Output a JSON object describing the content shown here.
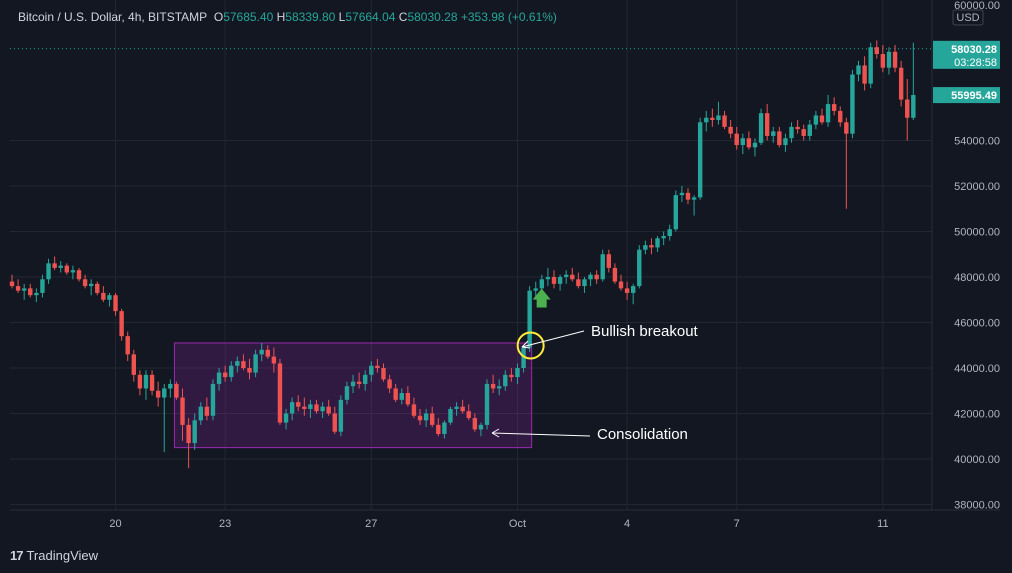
{
  "header": {
    "symbol": "Bitcoin / U.S. Dollar, 4h, BITSTAMP",
    "open_label": "O",
    "open": "57685.40",
    "high_label": "H",
    "high": "58339.80",
    "low_label": "L",
    "low": "57664.04",
    "close_label": "C",
    "close": "58030.28",
    "change": "+353.98 (+0.61%)"
  },
  "footer": {
    "brand": "TradingView"
  },
  "annotations": {
    "breakout": "Bullish breakout",
    "consolidation": "Consolidation"
  },
  "chart_data": {
    "type": "candlestick",
    "y_unit": "USD",
    "ylim": [
      37500,
      60000
    ],
    "y_ticks": [
      38000,
      40000,
      42000,
      44000,
      46000,
      48000,
      50000,
      52000,
      54000,
      60000
    ],
    "y_tick_labels": [
      "38000.00",
      "40000.00",
      "42000.00",
      "44000.00",
      "46000.00",
      "48000.00",
      "50000.00",
      "52000.00",
      "54000.00",
      "60000.00"
    ],
    "x_ticks": [
      {
        "label": "20",
        "index": 17
      },
      {
        "label": "23",
        "index": 35
      },
      {
        "label": "27",
        "index": 59
      },
      {
        "label": "Oct",
        "index": 83
      },
      {
        "label": "4",
        "index": 101
      },
      {
        "label": "7",
        "index": 119
      },
      {
        "label": "11",
        "index": 143
      }
    ],
    "price_tags": [
      {
        "value": 58030.28,
        "label": "58030.28",
        "sub": "03:28:58",
        "color": "#26a69a"
      },
      {
        "value": 55995.49,
        "label": "55995.49",
        "sub": "",
        "color": "#26a69a"
      }
    ],
    "consolidation_zone": {
      "start_index": 27,
      "end_index": 85,
      "low": 40500,
      "high": 45100
    },
    "breakout_point": {
      "index": 85,
      "price": 44900
    },
    "candles": [
      [
        47800,
        48100,
        47500,
        47600
      ],
      [
        47600,
        47900,
        47300,
        47400
      ],
      [
        47400,
        47700,
        47000,
        47500
      ],
      [
        47500,
        47700,
        47100,
        47200
      ],
      [
        47200,
        47500,
        46900,
        47300
      ],
      [
        47300,
        48100,
        47100,
        47900
      ],
      [
        47900,
        48800,
        47700,
        48600
      ],
      [
        48600,
        48900,
        48300,
        48400
      ],
      [
        48400,
        48700,
        48200,
        48500
      ],
      [
        48500,
        48600,
        48100,
        48200
      ],
      [
        48200,
        48500,
        47900,
        48300
      ],
      [
        48300,
        48400,
        47800,
        47900
      ],
      [
        47900,
        48100,
        47500,
        47600
      ],
      [
        47600,
        47900,
        47200,
        47700
      ],
      [
        47700,
        47800,
        47200,
        47300
      ],
      [
        47300,
        47600,
        46900,
        47000
      ],
      [
        47000,
        47300,
        46700,
        47200
      ],
      [
        47200,
        47300,
        46300,
        46500
      ],
      [
        46500,
        46600,
        45200,
        45400
      ],
      [
        45400,
        45600,
        44300,
        44600
      ],
      [
        44600,
        44800,
        43400,
        43700
      ],
      [
        43700,
        43900,
        42800,
        43100
      ],
      [
        43100,
        43900,
        42600,
        43700
      ],
      [
        43700,
        43900,
        42800,
        43000
      ],
      [
        43000,
        43400,
        42300,
        42700
      ],
      [
        42700,
        43300,
        40300,
        43100
      ],
      [
        43100,
        43500,
        42700,
        43300
      ],
      [
        43300,
        43400,
        42600,
        42700
      ],
      [
        42700,
        43100,
        40800,
        41500
      ],
      [
        41500,
        41800,
        39600,
        40700
      ],
      [
        40700,
        42000,
        40400,
        41700
      ],
      [
        41700,
        42500,
        41500,
        42300
      ],
      [
        42300,
        42700,
        41700,
        41900
      ],
      [
        41900,
        43500,
        41700,
        43300
      ],
      [
        43300,
        44000,
        43000,
        43800
      ],
      [
        43800,
        44100,
        43400,
        43600
      ],
      [
        43600,
        44300,
        43400,
        44100
      ],
      [
        44100,
        44500,
        43800,
        44300
      ],
      [
        44300,
        44600,
        43900,
        44000
      ],
      [
        44000,
        44400,
        43500,
        43800
      ],
      [
        43800,
        44800,
        43600,
        44600
      ],
      [
        44600,
        45100,
        44300,
        44800
      ],
      [
        44800,
        45000,
        44400,
        44500
      ],
      [
        44500,
        44900,
        43800,
        44200
      ],
      [
        44200,
        44400,
        41500,
        41600
      ],
      [
        41600,
        42200,
        41300,
        42000
      ],
      [
        42000,
        42700,
        41700,
        42500
      ],
      [
        42500,
        42800,
        42100,
        42300
      ],
      [
        42300,
        42700,
        41900,
        42200
      ],
      [
        42200,
        42600,
        41800,
        42400
      ],
      [
        42400,
        42600,
        42000,
        42100
      ],
      [
        42100,
        42500,
        41800,
        42300
      ],
      [
        42300,
        42600,
        41900,
        42000
      ],
      [
        42000,
        42300,
        41100,
        41200
      ],
      [
        41200,
        42800,
        41000,
        42600
      ],
      [
        42600,
        43400,
        42400,
        43200
      ],
      [
        43200,
        43700,
        42900,
        43400
      ],
      [
        43400,
        43800,
        43100,
        43300
      ],
      [
        43300,
        43900,
        43000,
        43700
      ],
      [
        43700,
        44300,
        43400,
        44100
      ],
      [
        44100,
        44400,
        43800,
        44000
      ],
      [
        44000,
        44200,
        43400,
        43500
      ],
      [
        43500,
        43700,
        42900,
        43100
      ],
      [
        43100,
        43300,
        42500,
        42600
      ],
      [
        42600,
        43100,
        42400,
        42900
      ],
      [
        42900,
        43200,
        42300,
        42400
      ],
      [
        42400,
        42700,
        41800,
        41900
      ],
      [
        41900,
        42200,
        41500,
        41700
      ],
      [
        41700,
        42200,
        41400,
        42000
      ],
      [
        42000,
        42300,
        41400,
        41500
      ],
      [
        41500,
        41800,
        41000,
        41100
      ],
      [
        41100,
        41700,
        40900,
        41600
      ],
      [
        41600,
        42300,
        41500,
        42200
      ],
      [
        42200,
        42500,
        41900,
        42300
      ],
      [
        42300,
        42600,
        42000,
        42100
      ],
      [
        42100,
        42400,
        41700,
        41800
      ],
      [
        41800,
        42000,
        41200,
        41300
      ],
      [
        41300,
        41600,
        41000,
        41500
      ],
      [
        41500,
        43500,
        41300,
        43300
      ],
      [
        43300,
        43700,
        42900,
        43100
      ],
      [
        43100,
        43500,
        42800,
        43200
      ],
      [
        43200,
        43900,
        43000,
        43700
      ],
      [
        43700,
        44000,
        43400,
        43600
      ],
      [
        43600,
        44200,
        43300,
        44000
      ],
      [
        44000,
        45000,
        43800,
        44900
      ],
      [
        44900,
        47600,
        44700,
        47400
      ],
      [
        47400,
        47800,
        47000,
        47500
      ],
      [
        47500,
        48100,
        47200,
        47900
      ],
      [
        47900,
        48400,
        47600,
        48000
      ],
      [
        48000,
        48300,
        47500,
        47700
      ],
      [
        47700,
        48100,
        47400,
        48000
      ],
      [
        48000,
        48300,
        47700,
        48100
      ],
      [
        48100,
        48400,
        47800,
        47900
      ],
      [
        47900,
        48200,
        47500,
        47600
      ],
      [
        47600,
        48000,
        47300,
        47900
      ],
      [
        47900,
        48200,
        47600,
        48100
      ],
      [
        48100,
        48300,
        47700,
        47900
      ],
      [
        47900,
        49200,
        47800,
        49000
      ],
      [
        49000,
        49200,
        48200,
        48400
      ],
      [
        48400,
        48600,
        47700,
        47800
      ],
      [
        47800,
        48100,
        47400,
        47500
      ],
      [
        47500,
        47800,
        47000,
        47300
      ],
      [
        47300,
        47700,
        46800,
        47600
      ],
      [
        47600,
        49400,
        47500,
        49200
      ],
      [
        49200,
        49600,
        49000,
        49400
      ],
      [
        49400,
        49700,
        49000,
        49300
      ],
      [
        49300,
        49800,
        49100,
        49700
      ],
      [
        49700,
        50000,
        49400,
        49800
      ],
      [
        49800,
        50300,
        49600,
        50100
      ],
      [
        50100,
        51800,
        50000,
        51600
      ],
      [
        51600,
        52000,
        51300,
        51700
      ],
      [
        51700,
        51900,
        51200,
        51400
      ],
      [
        51400,
        51600,
        50700,
        51500
      ],
      [
        51500,
        55000,
        51400,
        54800
      ],
      [
        54800,
        55300,
        54400,
        55000
      ],
      [
        55000,
        55400,
        54600,
        54900
      ],
      [
        54900,
        55700,
        54700,
        55100
      ],
      [
        55100,
        55300,
        54500,
        54600
      ],
      [
        54600,
        54900,
        54100,
        54300
      ],
      [
        54300,
        54600,
        53600,
        53800
      ],
      [
        53800,
        54300,
        53400,
        54100
      ],
      [
        54100,
        54400,
        53600,
        53700
      ],
      [
        53700,
        54100,
        53300,
        53900
      ],
      [
        53900,
        55400,
        53800,
        55200
      ],
      [
        55200,
        55600,
        54000,
        54200
      ],
      [
        54200,
        54600,
        53900,
        54400
      ],
      [
        54400,
        54600,
        53700,
        53800
      ],
      [
        53800,
        54300,
        53500,
        54100
      ],
      [
        54100,
        54800,
        53900,
        54600
      ],
      [
        54600,
        54900,
        54300,
        54500
      ],
      [
        54500,
        54700,
        54000,
        54200
      ],
      [
        54200,
        54900,
        54000,
        54700
      ],
      [
        54700,
        55300,
        54500,
        55100
      ],
      [
        55100,
        55400,
        54700,
        54800
      ],
      [
        54800,
        56000,
        54600,
        55600
      ],
      [
        55600,
        55900,
        55100,
        55300
      ],
      [
        55300,
        55500,
        54600,
        54800
      ],
      [
        54800,
        55000,
        51000,
        54300
      ],
      [
        54300,
        57100,
        54100,
        56900
      ],
      [
        56900,
        57500,
        56600,
        57300
      ],
      [
        57300,
        57700,
        56200,
        56500
      ],
      [
        56500,
        58300,
        56300,
        58100
      ],
      [
        58100,
        58400,
        57600,
        57800
      ],
      [
        57800,
        58200,
        57000,
        57200
      ],
      [
        57200,
        58100,
        56900,
        57900
      ],
      [
        57900,
        58200,
        57000,
        57200
      ],
      [
        57200,
        57500,
        55500,
        55800
      ],
      [
        55800,
        56700,
        54000,
        55000
      ],
      [
        55000,
        58300,
        54900,
        56000
      ]
    ]
  }
}
